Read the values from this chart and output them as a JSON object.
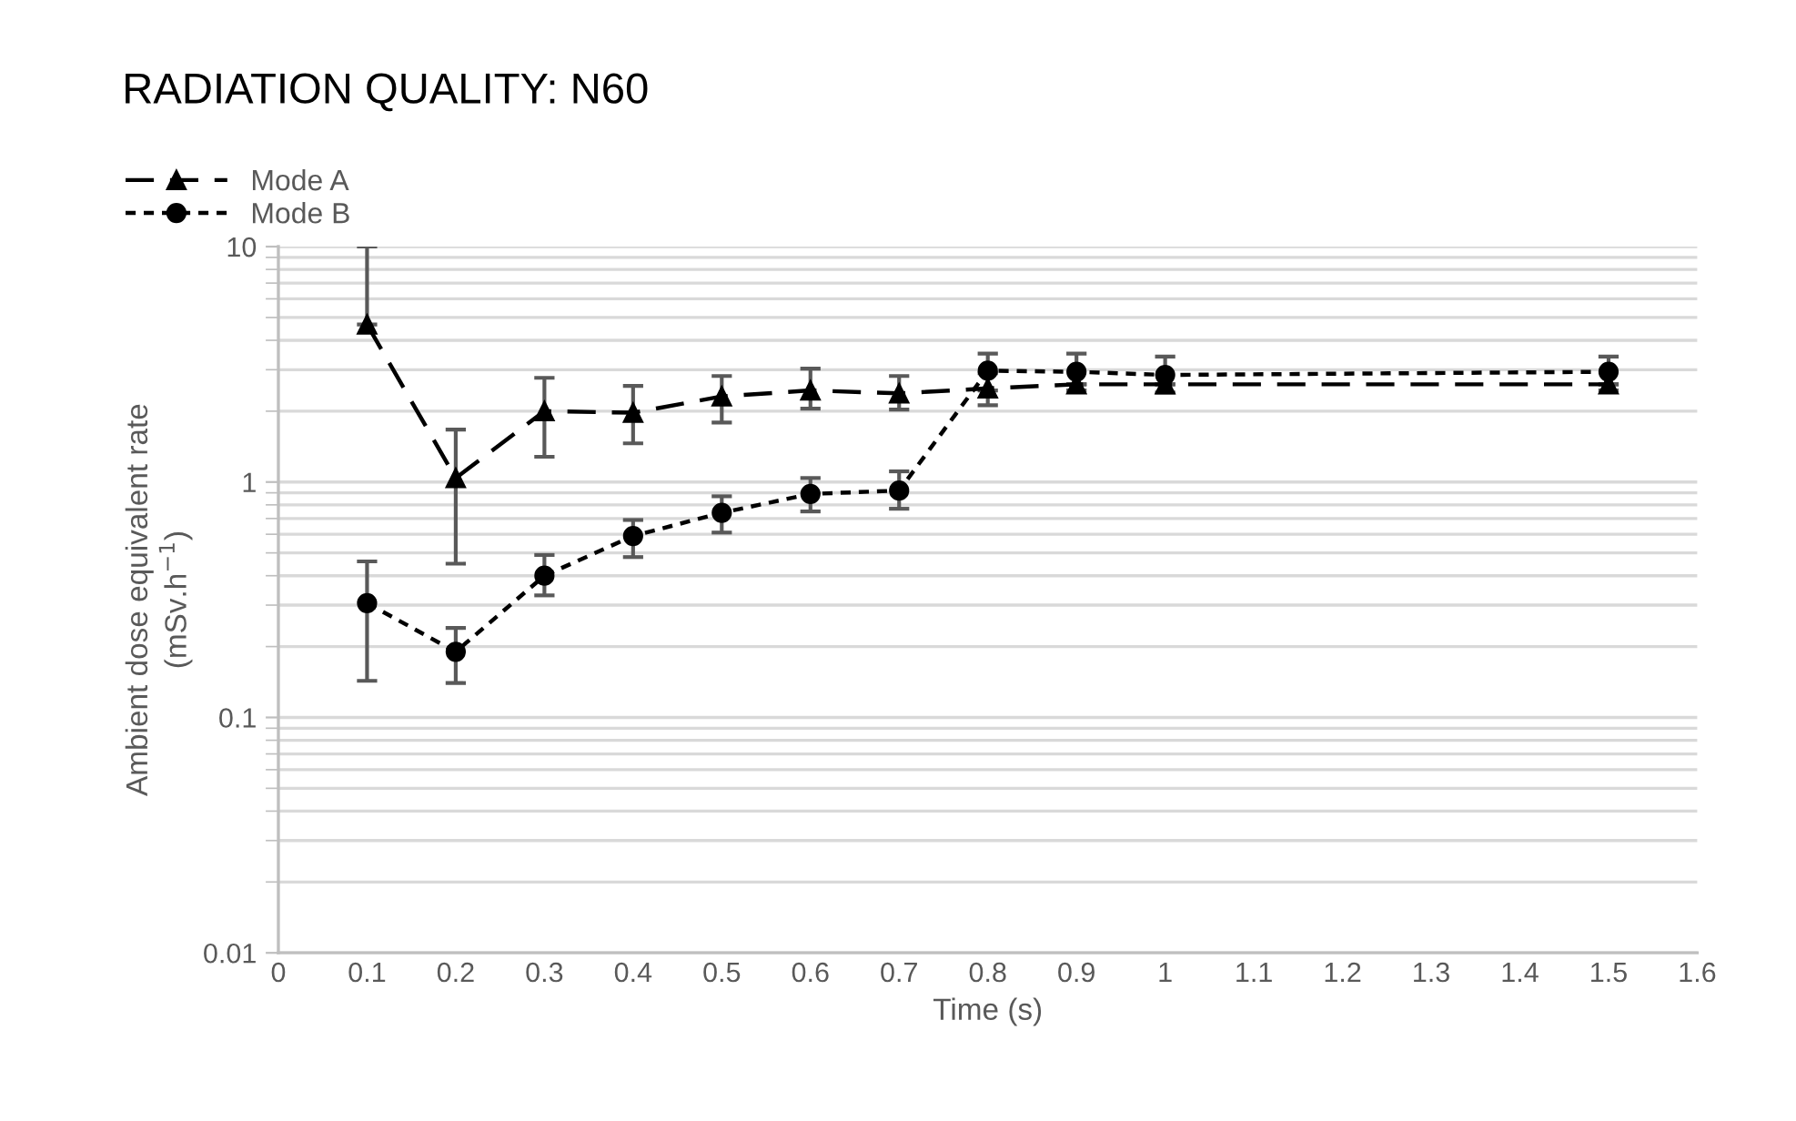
{
  "chart_data": {
    "type": "line",
    "title": "RADIATION QUALITY: N60",
    "xlabel": "Time (s)",
    "ylabel": "Ambient dose equivalent rate\n(mSv.h$^{−1}$)",
    "x": [
      0.1,
      0.2,
      0.3,
      0.4,
      0.5,
      0.6,
      0.7,
      0.8,
      0.9,
      1.0,
      1.5
    ],
    "series": [
      {
        "name": "Mode A",
        "color": "#000000",
        "marker": "triangle",
        "line_style": "dashed",
        "values": [
          4.67,
          1.04,
          2.0,
          1.97,
          2.31,
          2.45,
          2.38,
          2.5,
          2.6,
          2.6,
          2.6
        ],
        "errors": [
          [
            4.67,
            10
          ],
          [
            0.45,
            1.67
          ],
          [
            1.28,
            2.77
          ],
          [
            1.46,
            2.56
          ],
          [
            1.79,
            2.82
          ],
          [
            2.05,
            3.03
          ],
          [
            2.03,
            2.82
          ],
          [
            2.12,
            2.9
          ],
          null,
          null,
          null
        ]
      },
      {
        "name": "Mode B",
        "color": "#000000",
        "marker": "circle",
        "line_style": "dotted",
        "values": [
          0.306,
          0.19,
          0.4,
          0.59,
          0.74,
          0.89,
          0.92,
          2.97,
          2.94,
          2.85,
          2.94
        ],
        "errors": [
          [
            0.143,
            0.46
          ],
          [
            0.14,
            0.24
          ],
          [
            0.33,
            0.49
          ],
          [
            0.48,
            0.69
          ],
          [
            0.61,
            0.87
          ],
          [
            0.75,
            1.04
          ],
          [
            0.77,
            1.11
          ],
          [
            2.45,
            3.51
          ],
          [
            2.45,
            3.51
          ],
          [
            2.4,
            3.41
          ],
          [
            2.45,
            3.41
          ]
        ]
      }
    ],
    "log": "y",
    "xlim": [
      0,
      1.6
    ],
    "ylim": [
      0.01,
      10
    ],
    "xticks": [
      0,
      0.1,
      0.2,
      0.3,
      0.4,
      0.5,
      0.6,
      0.7,
      0.8,
      0.9,
      1,
      1.1,
      1.2,
      1.3,
      1.4,
      1.5,
      1.6
    ],
    "yticks": [
      0.01,
      0.1,
      1,
      10
    ],
    "grid": "y",
    "legend": "top left"
  }
}
